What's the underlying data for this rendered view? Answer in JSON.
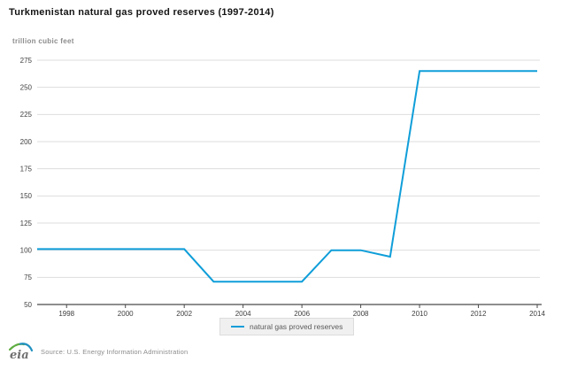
{
  "header": {
    "title": "Turkmenistan natural gas proved reserves (1997-2014)",
    "unit_label": "trillion cubic feet"
  },
  "chart_data": {
    "type": "line",
    "title": "Turkmenistan natural gas proved reserves (1997-2014)",
    "ylabel": "trillion cubic feet",
    "x": [
      1997,
      1998,
      1999,
      2000,
      2001,
      2002,
      2003,
      2004,
      2005,
      2006,
      2007,
      2008,
      2009,
      2010,
      2011,
      2012,
      2013,
      2014
    ],
    "series": [
      {
        "name": "natural gas proved reserves",
        "color": "#0f9ed9",
        "values": [
          101,
          101,
          101,
          101,
          101,
          101,
          71,
          71,
          71,
          71,
          100,
          100,
          94,
          265,
          265,
          265,
          265,
          265
        ]
      }
    ],
    "ylim": [
      50,
      275
    ],
    "ytick_interval": 25,
    "yticks": [
      50,
      75,
      100,
      125,
      150,
      175,
      200,
      225,
      250,
      275
    ],
    "xticks": [
      1998,
      2000,
      2002,
      2004,
      2006,
      2008,
      2010,
      2012,
      2014
    ],
    "grid": true,
    "legend_position": "bottom"
  },
  "legend": {
    "items": [
      {
        "label": "natural gas proved reserves",
        "color": "#0f9ed9"
      }
    ]
  },
  "footer": {
    "logo_text": "eia",
    "source": "Source: U.S. Energy Information Administration"
  },
  "colors": {
    "line": "#0f9ed9",
    "grid": "#dddddd",
    "axis": "#4a4a4a",
    "tick_label": "#3f3f3f",
    "title": "#141414",
    "unit_label": "#8c8c8c",
    "legend_bg": "#f0f0f0",
    "legend_text": "#5a5a5a",
    "source_text": "#8c8c8c",
    "logo_green": "#5fad41",
    "logo_blue": "#2191c0",
    "logo_text_gray": "#6e6e6e"
  }
}
